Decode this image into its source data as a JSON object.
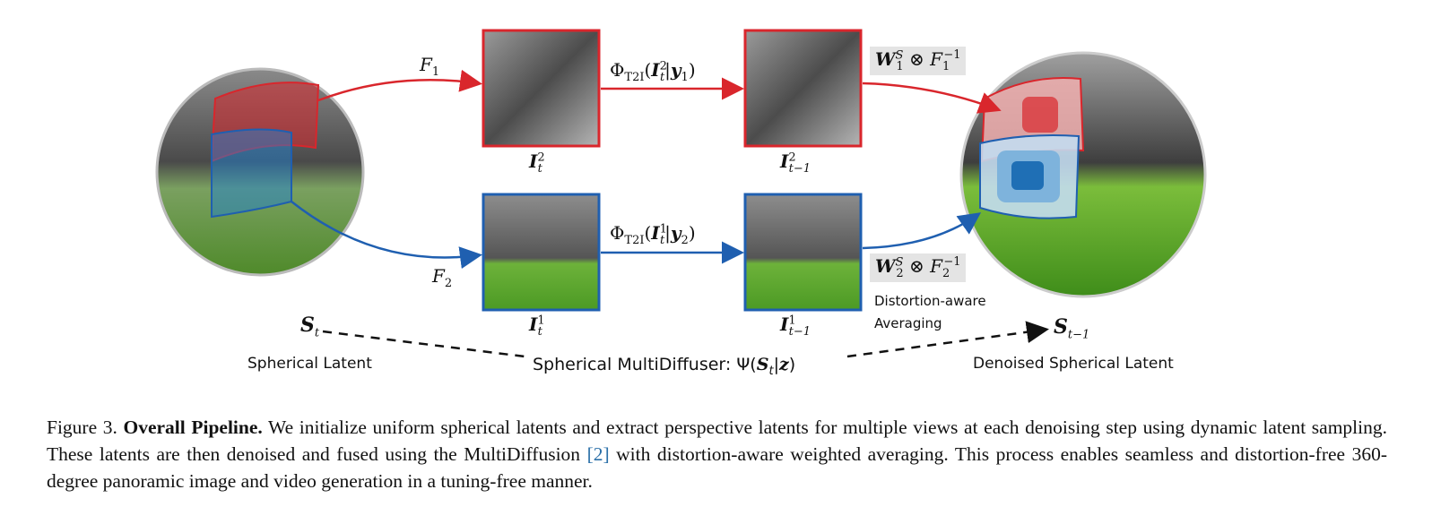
{
  "figure": {
    "left_label": {
      "symbol": "S",
      "sub": "t",
      "text": "Spherical Latent"
    },
    "right_label": {
      "symbol": "S",
      "sub": "t−1",
      "text": "Denoised Spherical Latent"
    },
    "center_label": {
      "text": "Spherical MultiDiffuser: Ψ(",
      "symbol": "S",
      "sub": "t",
      "rest": "|",
      "z": "z",
      "close": ")"
    },
    "top": {
      "F": "F",
      "F_sub": "1",
      "I_in_sup": "2",
      "I_in_sub": "t",
      "I_out_sup": "2",
      "I_out_sub": "t−1",
      "phi": "Φ",
      "phi_sub": "T2I",
      "y": "y",
      "y_sub": "1",
      "W_sup": "S",
      "W_sub": "1",
      "Finv_sub": "1",
      "Finv_sup": "−1"
    },
    "bottom": {
      "F": "F",
      "F_sub": "2",
      "I_in_sup": "1",
      "I_in_sub": "t",
      "I_out_sup": "1",
      "I_out_sub": "t−1",
      "phi": "Φ",
      "phi_sub": "T2I",
      "y": "y",
      "y_sub": "2",
      "W_sup": "S",
      "W_sub": "2",
      "Finv_sub": "2",
      "Finv_sup": "−1"
    },
    "averaging_label": [
      "Distortion-aware",
      "Averaging"
    ],
    "otimes": "⊗",
    "colors": {
      "red": "#d9262c",
      "blue": "#1f5fb0",
      "sky": "#6b6b6b",
      "grass": "#5da02c"
    }
  },
  "caption": {
    "prefix": "Figure 3.",
    "bold": "Overall Pipeline.",
    "text1": "We initialize uniform spherical latents and extract perspective latents for multiple views at each denoising step using dynamic latent sampling. These latents are then denoised and fused using the MultiDiffusion ",
    "ref": "[2]",
    "text2": " with distortion-aware weighted averaging. This process enables seamless and distortion-free 360-degree panoramic image and video generation in a tuning-free manner."
  }
}
